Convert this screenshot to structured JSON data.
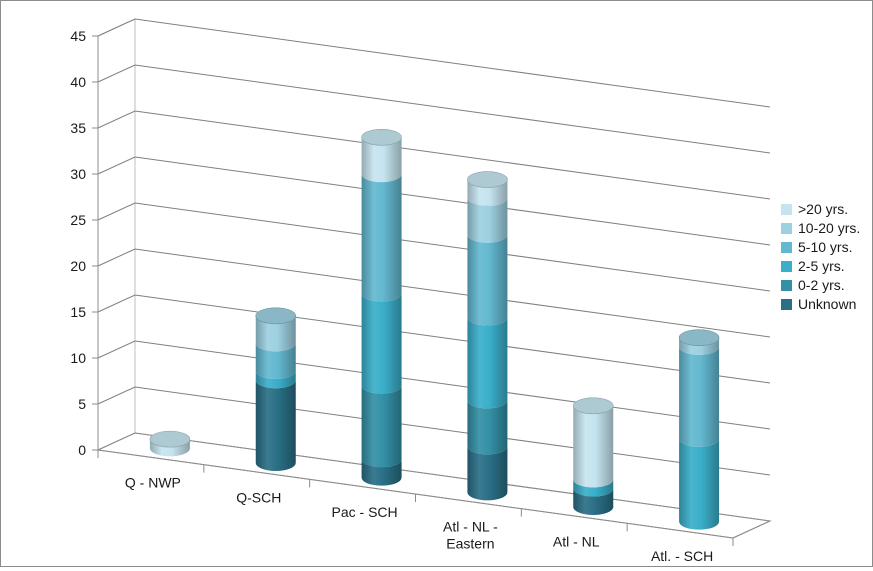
{
  "chart_data": {
    "type": "bar",
    "stacked": true,
    "style": "3d-cylinder",
    "categories": [
      "Q - NWP",
      "Q-SCH",
      "Pac - SCH",
      "Atl - NL - Eastern",
      "Atl - NL",
      "Atl. - SCH"
    ],
    "category_lines": [
      [
        "Q - NWP"
      ],
      [
        "Q-SCH"
      ],
      [
        "Pac - SCH"
      ],
      [
        "Atl - NL -",
        "Eastern"
      ],
      [
        "Atl - NL"
      ],
      [
        "Atl. - SCH"
      ]
    ],
    "series": [
      {
        "name": "Unknown",
        "color": "#2a6f86",
        "values": [
          0,
          9,
          2,
          5,
          2,
          0
        ]
      },
      {
        "name": "0-2 yrs.",
        "color": "#3390a6",
        "values": [
          0,
          0,
          8,
          5,
          0,
          0
        ]
      },
      {
        "name": "2-5 yrs.",
        "color": "#3aafca",
        "values": [
          0,
          1,
          10,
          9,
          1,
          9
        ]
      },
      {
        "name": "5-10 yrs.",
        "color": "#63b8d0",
        "values": [
          0,
          3,
          13,
          9,
          0,
          10
        ]
      },
      {
        "name": "10-20 yrs.",
        "color": "#9dd0e0",
        "values": [
          0,
          3,
          0,
          4,
          0,
          1
        ]
      },
      {
        "name": ">20 yrs.",
        "color": "#c5e4ef",
        "values": [
          1,
          0,
          4,
          2,
          8,
          0
        ]
      }
    ],
    "yticks": [
      0,
      5,
      10,
      15,
      20,
      25,
      30,
      35,
      40,
      45
    ],
    "ylim": [
      0,
      45
    ],
    "title": "",
    "xlabel": "",
    "ylabel": "",
    "grid": true,
    "legend_position": "right"
  }
}
